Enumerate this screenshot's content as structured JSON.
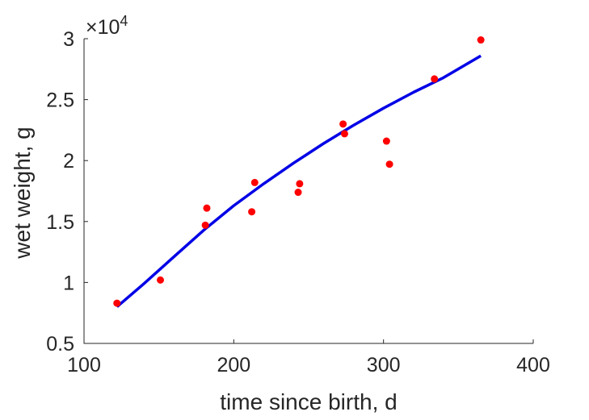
{
  "chart_data": {
    "type": "scatter",
    "xlabel": "time since birth, d",
    "ylabel": "wet weight, g",
    "xlim": [
      100,
      400
    ],
    "ylim": [
      5000,
      30000
    ],
    "x_ticks": [
      100,
      200,
      300,
      400
    ],
    "x_tick_labels": [
      "100",
      "200",
      "300",
      "400"
    ],
    "y_ticks": [
      5000,
      10000,
      15000,
      20000,
      25000,
      30000
    ],
    "y_tick_labels": [
      "0.5",
      "1",
      "1.5",
      "2",
      "2.5",
      "3"
    ],
    "y_exponent_label": {
      "base": "×10",
      "power": "4"
    },
    "grid": false,
    "colors": {
      "points": "#ff0000",
      "fit": "#0000e6",
      "axes": "#262626"
    },
    "series": [
      {
        "kind": "points",
        "x": [
          122,
          151,
          181,
          182,
          212,
          214,
          243,
          244,
          273,
          274,
          302,
          304,
          334,
          365
        ],
        "y": [
          8300,
          10200,
          14700,
          16100,
          15800,
          18200,
          17400,
          18100,
          23000,
          22200,
          21600,
          19700,
          26700,
          29900
        ]
      },
      {
        "kind": "line",
        "x": [
          122,
          140,
          160,
          180,
          200,
          220,
          240,
          260,
          280,
          300,
          320,
          340,
          365
        ],
        "y": [
          8000,
          9900,
          12100,
          14300,
          16300,
          18100,
          19800,
          21400,
          22900,
          24300,
          25600,
          26800,
          28600
        ]
      }
    ]
  }
}
